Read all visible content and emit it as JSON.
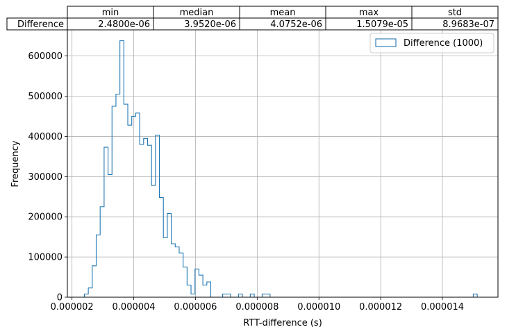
{
  "chart_data": {
    "type": "histogram",
    "stats_table": {
      "columns": [
        "min",
        "median",
        "mean",
        "max",
        "std"
      ],
      "row_label": "Difference",
      "values": [
        "2.4800e-06",
        "3.9520e-06",
        "4.0752e-06",
        "1.5079e-05",
        "8.9683e-07"
      ]
    },
    "xlabel": "RTT-difference (s)",
    "ylabel": "Frequency",
    "xlim": [
      1.85e-06,
      1.58e-05
    ],
    "ylim": [
      0,
      665000
    ],
    "xticks": [
      2e-06,
      4e-06,
      6e-06,
      8e-06,
      1e-05,
      1.2e-05,
      1.4e-05
    ],
    "xtick_labels": [
      "0.000002",
      "0.000004",
      "0.000006",
      "0.000008",
      "0.000010",
      "0.000012",
      "0.000014"
    ],
    "yticks": [
      0,
      100000,
      200000,
      300000,
      400000,
      500000,
      600000
    ],
    "ytick_labels": [
      "0",
      "100000",
      "200000",
      "300000",
      "400000",
      "500000",
      "600000"
    ],
    "grid": true,
    "legend": {
      "position": "top-right",
      "entries": [
        "Difference (1000)"
      ]
    },
    "series": [
      {
        "name": "Difference (1000)",
        "color": "#1f77b4",
        "histtype": "step",
        "bin_start": 2.4e-06,
        "bin_width": 1.28e-07,
        "counts": [
          8000,
          23000,
          78000,
          155000,
          225000,
          373000,
          305000,
          475000,
          505000,
          638000,
          480000,
          428000,
          450000,
          458000,
          380000,
          395000,
          378000,
          278000,
          403000,
          248000,
          148000,
          208000,
          133000,
          125000,
          110000,
          75000,
          30000,
          8000,
          70000,
          55000,
          30000,
          38000,
          0,
          0,
          0,
          8000,
          8000,
          0,
          0,
          8000,
          0,
          0,
          8000,
          0,
          0,
          8000,
          8000
        ]
      }
    ],
    "outlier_bins": [
      {
        "start": 1.5e-05,
        "width": 1.28e-07,
        "count": 8000
      }
    ]
  }
}
